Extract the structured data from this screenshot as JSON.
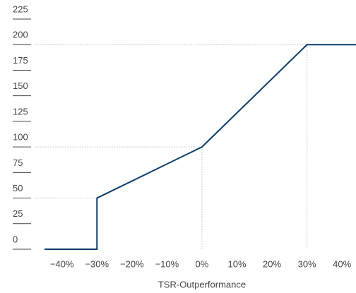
{
  "chart_data": {
    "type": "line",
    "x_label": "TSR-Outperformance",
    "series": [
      {
        "color": "#0b3c6b",
        "x": [
          -45,
          -30,
          -30,
          0,
          30,
          44
        ],
        "values": [
          0,
          0,
          50,
          100,
          200,
          200
        ]
      }
    ],
    "xlim": [
      -46,
      44
    ],
    "xticks": [
      {
        "value": -40,
        "label": "−40%"
      },
      {
        "value": -30,
        "label": "−30%"
      },
      {
        "value": -20,
        "label": "−20%"
      },
      {
        "value": -10,
        "label": "−10%"
      },
      {
        "value": 0,
        "label": "0%"
      },
      {
        "value": 10,
        "label": "10%"
      },
      {
        "value": 20,
        "label": "20%"
      },
      {
        "value": 30,
        "label": "30%"
      },
      {
        "value": 40,
        "label": "40%"
      }
    ],
    "ylim": [
      0,
      225
    ],
    "yticks": [
      0,
      25,
      50,
      75,
      100,
      125,
      150,
      175,
      200,
      225
    ]
  }
}
